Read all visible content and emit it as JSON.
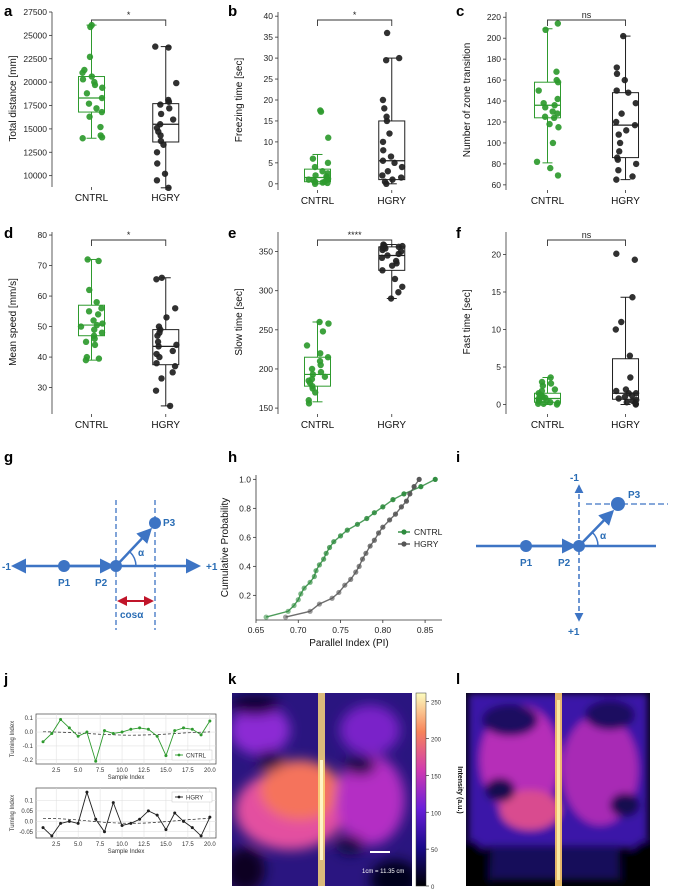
{
  "panel_labels": [
    "a",
    "b",
    "c",
    "d",
    "e",
    "f",
    "g",
    "h",
    "i",
    "j",
    "k",
    "l"
  ],
  "colors": {
    "cntrl": "#2e9a2e",
    "hgry": "#1f1f1f",
    "diagram": "#3d74c4",
    "cos": "#c0152a",
    "h_cntrl": "#2e8b3e",
    "h_hgry": "#555555"
  },
  "chart_data": [
    {
      "id": "a",
      "type": "box-scatter",
      "ylabel": "Total distance [mm]",
      "categories": [
        "CNTRL",
        "HGRY"
      ],
      "ylim": [
        9000,
        27500
      ],
      "yticks": [
        10000,
        12500,
        15000,
        17500,
        20000,
        22500,
        25000,
        27500
      ],
      "significance": "*",
      "series": [
        {
          "name": "CNTRL",
          "box": [
            14000,
            16800,
            18300,
            20600,
            26100
          ],
          "points": [
            26100,
            25900,
            22700,
            21300,
            21000,
            20600,
            20300,
            20000,
            19700,
            19400,
            18800,
            18300,
            17700,
            17200,
            16800,
            16300,
            15200,
            14300,
            14100,
            14000
          ]
        },
        {
          "name": "HGRY",
          "box": [
            8700,
            13600,
            15500,
            17700,
            23800
          ],
          "points": [
            23800,
            23700,
            19900,
            18100,
            17900,
            17600,
            17200,
            16600,
            16000,
            15500,
            15100,
            14700,
            14300,
            13700,
            13300,
            12500,
            11300,
            10200,
            9500,
            8700
          ]
        }
      ]
    },
    {
      "id": "b",
      "type": "box-scatter",
      "ylabel": "Freezing time [sec]",
      "categories": [
        "CNTRL",
        "HGRY"
      ],
      "ylim": [
        -1,
        41
      ],
      "yticks": [
        0,
        5,
        10,
        15,
        20,
        25,
        30,
        35,
        40
      ],
      "significance": "*",
      "series": [
        {
          "name": "CNTRL",
          "box": [
            0,
            0.5,
            1.5,
            3.5,
            7
          ],
          "points": [
            17.5,
            17.2,
            11,
            6,
            5,
            4,
            3,
            2.5,
            2,
            1.8,
            1.5,
            1.2,
            1,
            1,
            0.8,
            0.5,
            0.5,
            0.3,
            0.2,
            0
          ]
        },
        {
          "name": "HGRY",
          "box": [
            0,
            1,
            5.5,
            15,
            30
          ],
          "points": [
            36,
            30,
            29.5,
            20,
            18,
            16,
            15,
            12,
            10,
            8,
            6.5,
            5.5,
            5,
            4,
            3,
            2,
            1.5,
            1,
            0.5,
            0
          ]
        }
      ]
    },
    {
      "id": "c",
      "type": "box-scatter",
      "ylabel": "Number of zone transition",
      "categories": [
        "CNTRL",
        "HGRY"
      ],
      "ylim": [
        57,
        225
      ],
      "yticks": [
        60,
        80,
        100,
        120,
        140,
        160,
        180,
        200,
        220
      ],
      "significance": "ns",
      "series": [
        {
          "name": "CNTRL",
          "box": [
            81,
            124,
            136,
            158,
            209
          ],
          "points": [
            214,
            208,
            168,
            160,
            158,
            150,
            142,
            138,
            136,
            134,
            130,
            128,
            125,
            124,
            118,
            115,
            100,
            82,
            76,
            69
          ]
        },
        {
          "name": "HGRY",
          "box": [
            65,
            86,
            117,
            148,
            202
          ],
          "points": [
            202,
            172,
            166,
            160,
            150,
            148,
            138,
            128,
            120,
            117,
            112,
            108,
            100,
            92,
            86,
            84,
            80,
            74,
            68,
            65
          ]
        }
      ]
    },
    {
      "id": "d",
      "type": "box-scatter",
      "ylabel": "Mean speed [mm/s]",
      "categories": [
        "CNTRL",
        "HGRY"
      ],
      "ylim": [
        22,
        81
      ],
      "yticks": [
        30,
        40,
        50,
        60,
        70,
        80
      ],
      "significance": "*",
      "series": [
        {
          "name": "CNTRL",
          "box": [
            39,
            47,
            50.5,
            57,
            72
          ],
          "points": [
            72,
            71.5,
            62,
            58,
            56,
            55,
            54,
            52,
            51,
            50.5,
            50,
            49,
            48,
            47,
            46,
            45,
            44,
            40,
            39.5,
            39
          ]
        },
        {
          "name": "HGRY",
          "box": [
            24,
            37.5,
            43.5,
            49,
            66
          ],
          "points": [
            66,
            65.5,
            56,
            53,
            50,
            49,
            48,
            47,
            45,
            44,
            43.5,
            42,
            41,
            40,
            38,
            37,
            35,
            33,
            29,
            24
          ]
        }
      ]
    },
    {
      "id": "e",
      "type": "box-scatter",
      "ylabel": "Slow time [sec]",
      "categories": [
        "CNTRL",
        "HGRY"
      ],
      "ylim": [
        145,
        375
      ],
      "yticks": [
        150,
        200,
        250,
        300,
        350
      ],
      "significance": "****",
      "series": [
        {
          "name": "CNTRL",
          "box": [
            158,
            178,
            193,
            215,
            260
          ],
          "points": [
            260,
            258,
            248,
            230,
            220,
            215,
            210,
            205,
            200,
            196,
            193,
            190,
            187,
            185,
            182,
            178,
            175,
            170,
            160,
            156
          ]
        },
        {
          "name": "HGRY",
          "box": [
            290,
            326,
            345,
            356,
            359
          ],
          "points": [
            359,
            358,
            357,
            356,
            356,
            355,
            354,
            352,
            350,
            347,
            345,
            342,
            338,
            335,
            332,
            326,
            315,
            305,
            298,
            290
          ]
        }
      ]
    },
    {
      "id": "f",
      "type": "box-scatter",
      "ylabel": "Fast time [sec]",
      "categories": [
        "CNTRL",
        "HGRY"
      ],
      "ylim": [
        -1,
        23
      ],
      "yticks": [
        0,
        5,
        10,
        15,
        20
      ],
      "significance": "ns",
      "series": [
        {
          "name": "CNTRL",
          "box": [
            0,
            0.3,
            0.8,
            1.5,
            3.6
          ],
          "points": [
            3.6,
            3,
            2.8,
            2.5,
            2,
            1.8,
            1.5,
            1.3,
            1.1,
            1,
            0.9,
            0.8,
            0.6,
            0.5,
            0.4,
            0.3,
            0.2,
            0.1,
            0.1,
            0
          ]
        },
        {
          "name": "HGRY",
          "box": [
            0,
            0.7,
            1.5,
            6.1,
            14.3
          ],
          "points": [
            20.1,
            19.3,
            14.3,
            11,
            10,
            6.5,
            3.6,
            2,
            1.8,
            1.5,
            1.5,
            1.2,
            1,
            0.8,
            0.6,
            0.5,
            0.3,
            0.2,
            0.1,
            0
          ]
        }
      ]
    },
    {
      "id": "h",
      "type": "line",
      "title": "",
      "xlabel": "Parallel Index (PI)",
      "ylabel": "Cumulative Probability",
      "xlim": [
        0.65,
        0.87
      ],
      "ylim": [
        0.03,
        1.03
      ],
      "xticks": [
        0.65,
        0.7,
        0.75,
        0.8,
        0.85
      ],
      "yticks": [
        0.2,
        0.4,
        0.6,
        0.8,
        1.0
      ],
      "legend": "center-right",
      "series": [
        {
          "name": "CNTRL",
          "x": [
            0.662,
            0.688,
            0.695,
            0.7,
            0.703,
            0.707,
            0.714,
            0.719,
            0.721,
            0.725,
            0.73,
            0.733,
            0.737,
            0.742,
            0.75,
            0.758,
            0.77,
            0.781,
            0.79,
            0.8,
            0.812,
            0.825,
            0.845,
            0.862
          ],
          "y": [
            0.05,
            0.09,
            0.13,
            0.17,
            0.21,
            0.25,
            0.29,
            0.33,
            0.37,
            0.41,
            0.45,
            0.49,
            0.53,
            0.57,
            0.61,
            0.65,
            0.69,
            0.73,
            0.77,
            0.81,
            0.86,
            0.9,
            0.95,
            1.0
          ]
        },
        {
          "name": "HGRY",
          "x": [
            0.685,
            0.714,
            0.725,
            0.74,
            0.748,
            0.755,
            0.762,
            0.768,
            0.772,
            0.776,
            0.78,
            0.785,
            0.79,
            0.795,
            0.8,
            0.808,
            0.815,
            0.822,
            0.828,
            0.832,
            0.837,
            0.843
          ],
          "y": [
            0.05,
            0.09,
            0.14,
            0.18,
            0.22,
            0.27,
            0.31,
            0.36,
            0.4,
            0.45,
            0.49,
            0.54,
            0.58,
            0.63,
            0.67,
            0.72,
            0.76,
            0.81,
            0.85,
            0.9,
            0.95,
            1.0
          ]
        }
      ]
    },
    {
      "id": "j_top",
      "type": "line",
      "ylabel": "Turning Index",
      "xlabel": "Sample Index",
      "legend": "CNTRL",
      "xlim": [
        0.2,
        20.7
      ],
      "ylim": [
        -0.23,
        0.13
      ],
      "xticks": [
        2.5,
        5.0,
        7.5,
        10.0,
        12.5,
        15.0,
        17.5,
        20.0
      ],
      "yticks": [
        -0.2,
        -0.1,
        0.0,
        0.1
      ],
      "x": [
        1,
        2,
        3,
        4,
        5,
        6,
        7,
        8,
        9,
        10,
        11,
        12,
        13,
        14,
        15,
        16,
        17,
        18,
        19,
        20
      ],
      "y": [
        -0.07,
        -0.01,
        0.09,
        0.03,
        -0.03,
        0.0,
        -0.21,
        0.01,
        -0.01,
        0.0,
        0.02,
        0.03,
        0.02,
        -0.03,
        -0.17,
        0.01,
        0.03,
        0.02,
        -0.02,
        0.08
      ]
    },
    {
      "id": "j_bottom",
      "type": "line",
      "ylabel": "Turning Index",
      "xlabel": "Sample Index",
      "legend": "HGRY",
      "xlim": [
        0.2,
        20.7
      ],
      "ylim": [
        -0.08,
        0.16
      ],
      "xticks": [
        2.5,
        5.0,
        7.5,
        10.0,
        12.5,
        15.0,
        17.5,
        20.0
      ],
      "yticks": [
        -0.05,
        0.0,
        0.05,
        0.1
      ],
      "x": [
        1,
        2,
        3,
        4,
        5,
        6,
        7,
        8,
        9,
        10,
        11,
        12,
        13,
        14,
        15,
        16,
        17,
        18,
        19,
        20
      ],
      "y": [
        -0.03,
        -0.07,
        -0.01,
        0.0,
        -0.01,
        0.14,
        0.01,
        -0.05,
        0.09,
        -0.02,
        -0.01,
        0.01,
        0.05,
        0.03,
        -0.04,
        0.04,
        0.0,
        -0.03,
        -0.07,
        0.02
      ]
    },
    {
      "id": "k",
      "type": "heatmap",
      "colorbar_label": "Intensity (a.u.)",
      "colorbar_ticks": [
        0,
        50,
        100,
        150,
        200,
        250
      ],
      "scalebar": "1cm = 11.35 cm"
    },
    {
      "id": "l",
      "type": "heatmap"
    }
  ],
  "diagram_g": {
    "minus": "-1",
    "plus": "+1",
    "p1": "P1",
    "p2": "P2",
    "p3": "P3",
    "alpha": "α",
    "cos": "cosα"
  },
  "diagram_i": {
    "minus": "-1",
    "plus": "+1",
    "p1": "P1",
    "p2": "P2",
    "p3": "P3",
    "alpha": "α"
  }
}
